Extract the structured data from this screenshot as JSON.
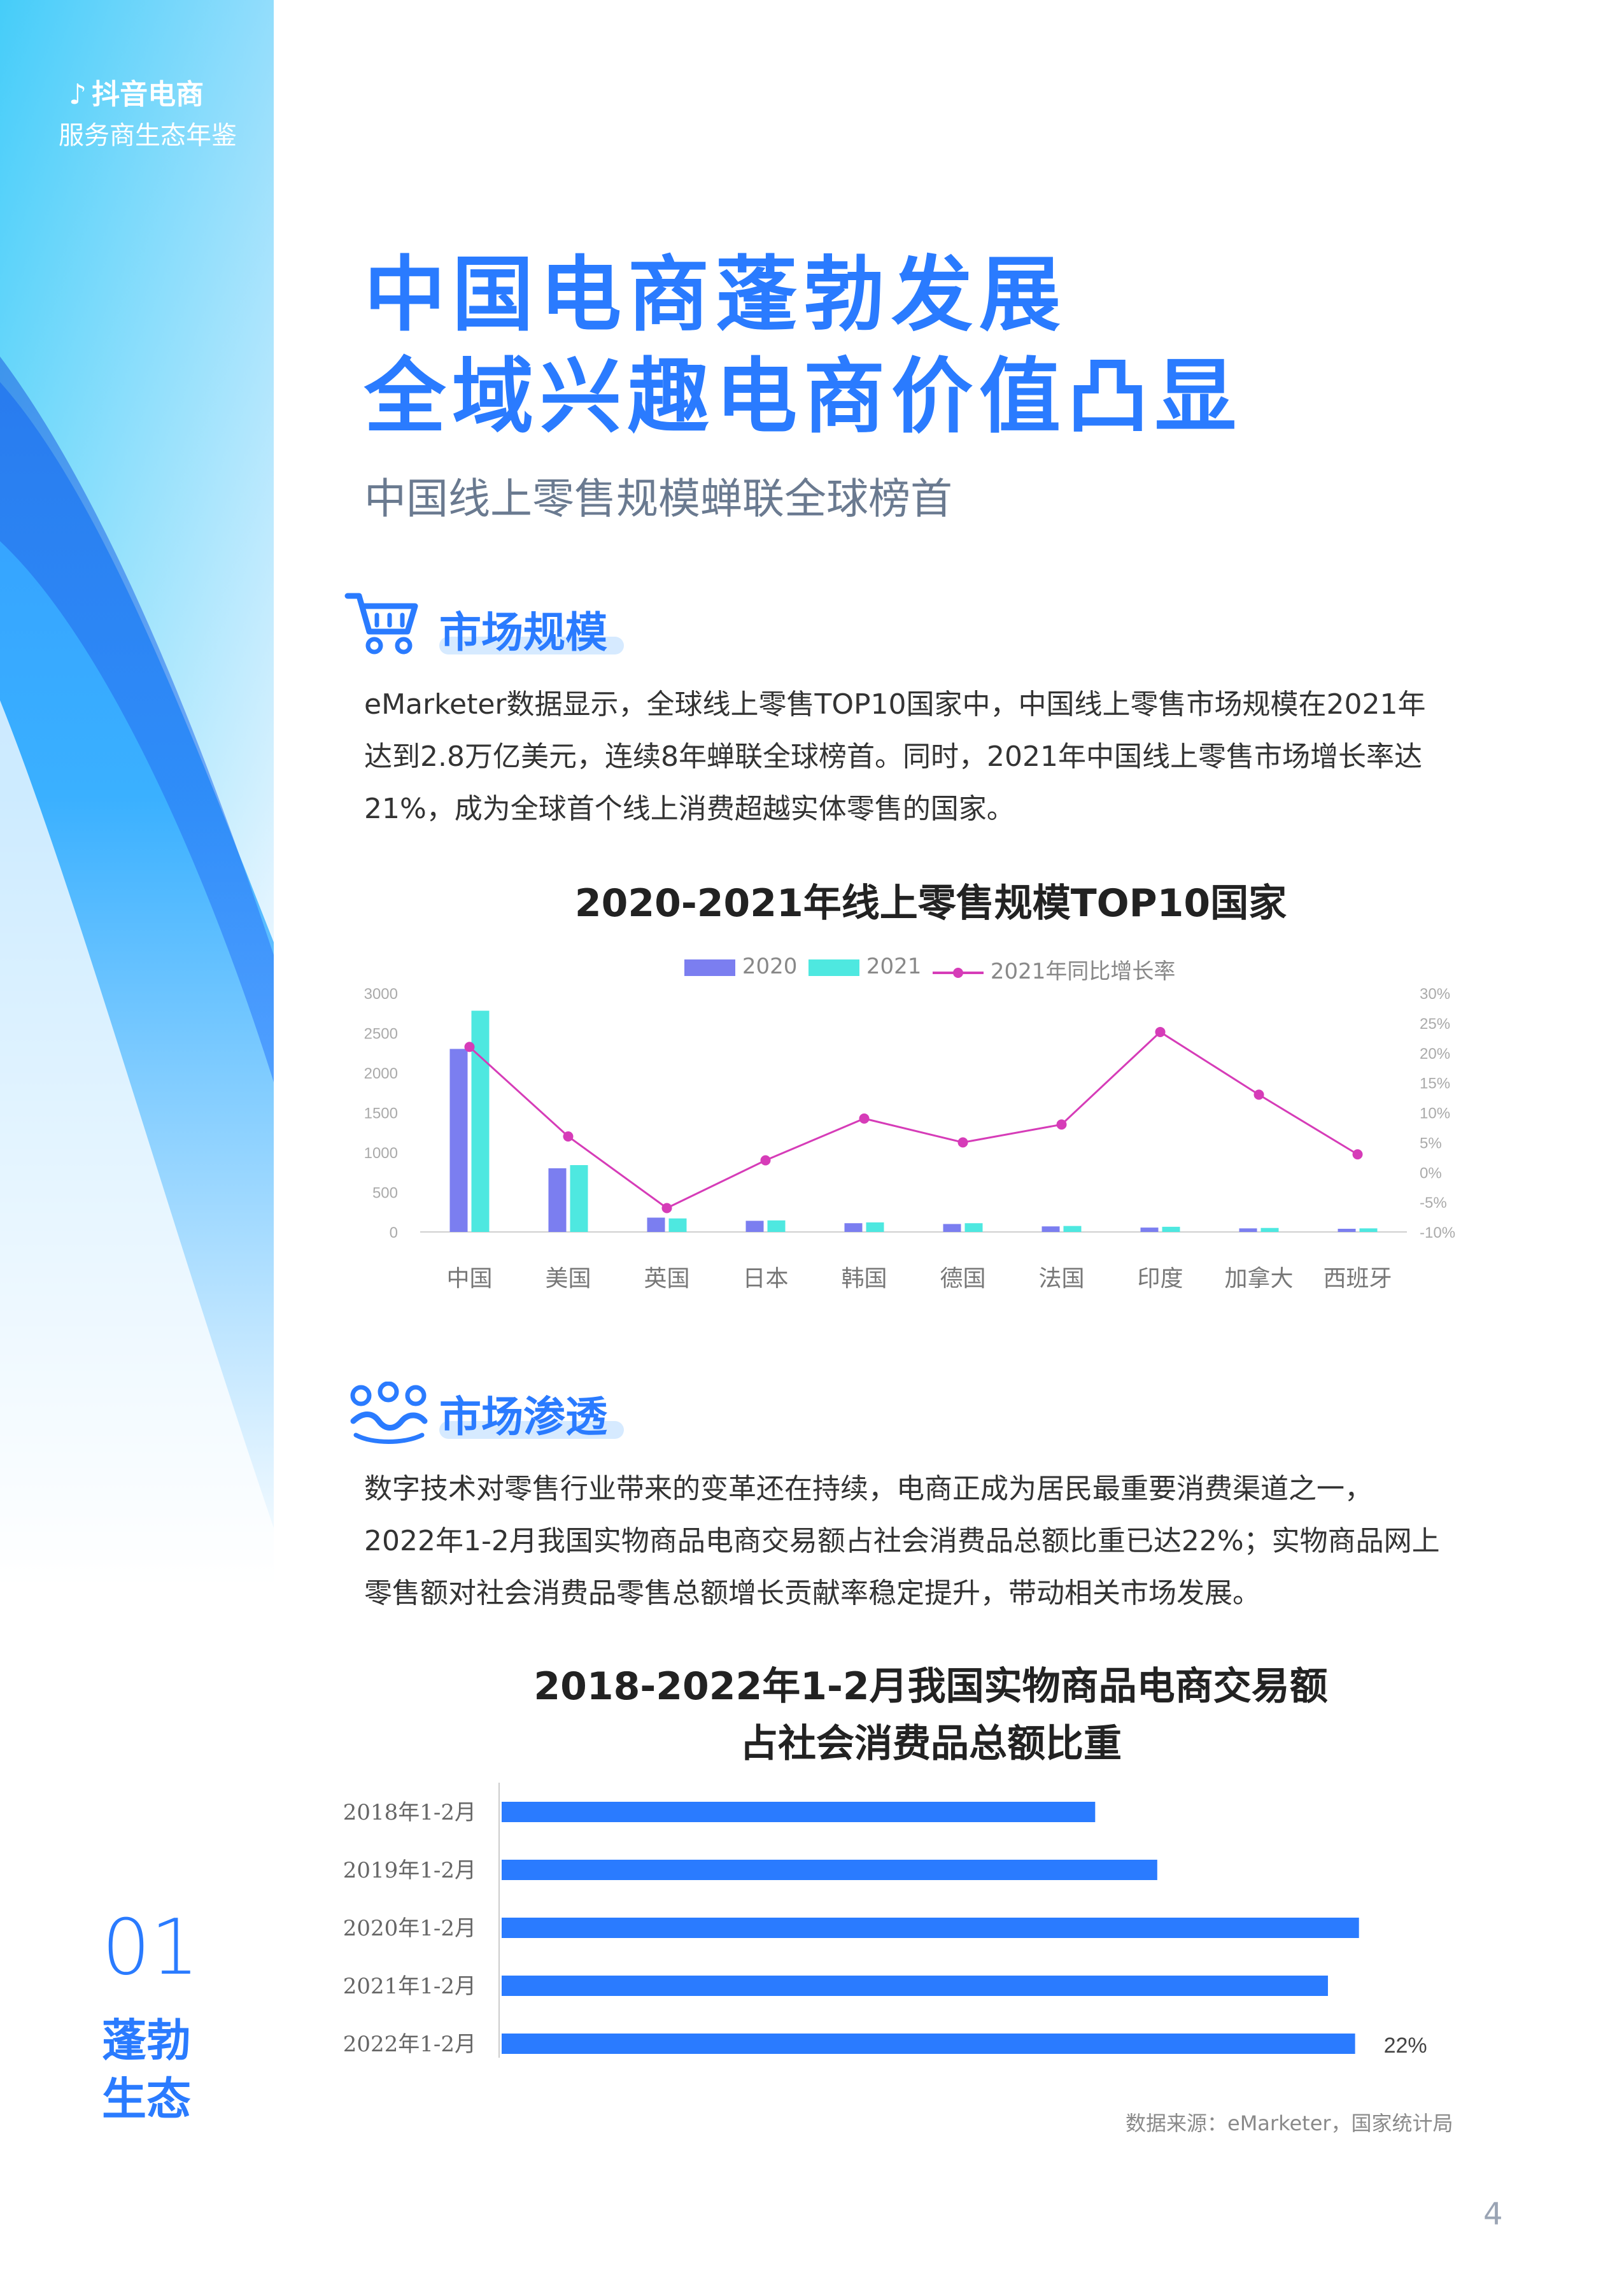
{
  "brand": {
    "name": "抖音电商",
    "subtitle": "服务商生态年鉴"
  },
  "headline": {
    "line1": "中国电商蓬勃发展",
    "line2": "全域兴趣电商价值凸显",
    "subtitle": "中国线上零售规模蝉联全球榜首"
  },
  "section1": {
    "title": "市场规模",
    "icon": "shopping-cart-icon",
    "lines": [
      "eMarketer数据显示，全球线上零售TOP10国家中，中国线上零售市场规模在2021年",
      "达到2.8万亿美元，连续8年蝉联全球榜首。同时，2021年中国线上零售市场增长率达",
      "21%，成为全球首个线上消费超越实体零售的国家。"
    ]
  },
  "section2": {
    "title": "市场渗透",
    "icon": "location-pins-icon",
    "lines": [
      "数字技术对零售行业带来的变革还在持续，电商正成为居民最重要消费渠道之一，",
      "2022年1-2月我国实物商品电商交易额占社会消费品总额比重已达22%；实物商品网上",
      "零售额对社会消费品零售总额增长贡献率稳定提升，带动相关市场发展。"
    ]
  },
  "chart_data": [
    {
      "type": "bar",
      "title": "2020-2021年线上零售规模TOP10国家",
      "categories": [
        "中国",
        "美国",
        "英国",
        "日本",
        "韩国",
        "德国",
        "法国",
        "印度",
        "加拿大",
        "西班牙"
      ],
      "series": [
        {
          "name": "2020",
          "type": "bar",
          "axis": "left",
          "color": "#7b7ef0",
          "values": [
            2300,
            800,
            180,
            140,
            110,
            100,
            70,
            55,
            45,
            40
          ]
        },
        {
          "name": "2021",
          "type": "bar",
          "axis": "left",
          "color": "#4ee8e0",
          "values": [
            2780,
            840,
            170,
            145,
            120,
            110,
            75,
            65,
            50,
            45
          ]
        },
        {
          "name": "2021年同比增长率",
          "type": "line",
          "axis": "right",
          "color": "#d63cb8",
          "values": [
            21,
            6,
            -6,
            2,
            9,
            5,
            8,
            23.5,
            13,
            3
          ]
        }
      ],
      "yticks": [
        "3000",
        "2500",
        "2000",
        "1500",
        "1000",
        "500",
        "0"
      ],
      "ylim": [
        0,
        3000
      ],
      "y2ticks": [
        "30%",
        "25%",
        "20%",
        "15%",
        "10%",
        "5%",
        "0%",
        "-5%",
        "-10%"
      ],
      "y2lim": [
        -10,
        30
      ],
      "legend": "top"
    },
    {
      "type": "bar",
      "orientation": "horizontal",
      "title_line1": "2018-2022年1-2月我国实物商品电商交易额",
      "title_line2": "占社会消费品总额比重",
      "categories": [
        "2018年1-2月",
        "2019年1-2月",
        "2020年1-2月",
        "2021年1-2月",
        "2022年1-2月"
      ],
      "values": [
        15.3,
        16.9,
        22.1,
        21.3,
        22
      ],
      "xlim": [
        0,
        23.5
      ],
      "annotation": "22%",
      "color": "#2a7bff"
    }
  ],
  "source": "数据来源：eMarketer，国家统计局",
  "page_number": "4",
  "side_section": {
    "number": "01",
    "name_line1": "蓬勃",
    "name_line2": "生态"
  }
}
